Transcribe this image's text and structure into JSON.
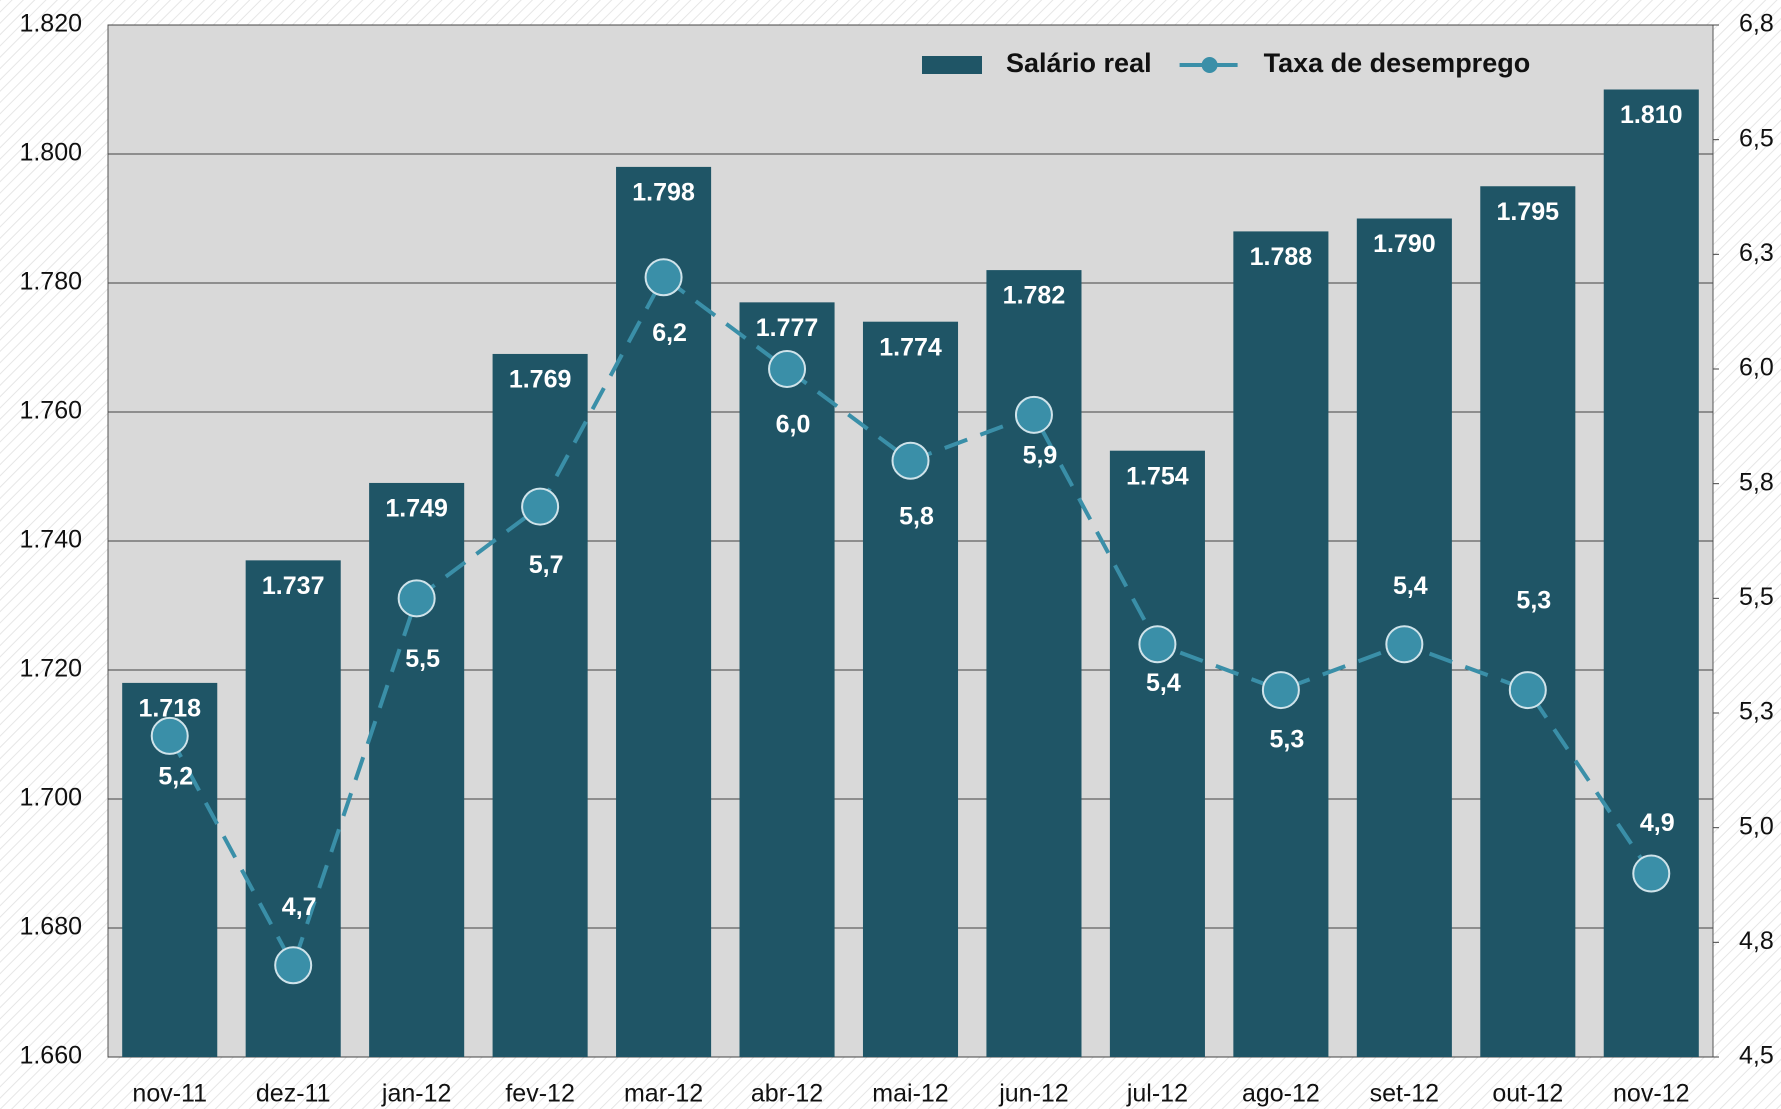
{
  "chart_data": {
    "type": "bar_line",
    "categories": [
      "nov-11",
      "dez-11",
      "jan-12",
      "fev-12",
      "mar-12",
      "abr-12",
      "mai-12",
      "jun-12",
      "jul-12",
      "ago-12",
      "set-12",
      "out-12",
      "nov-12"
    ],
    "series": [
      {
        "name": "Salário real",
        "type": "bar",
        "color": "#1f5566",
        "axis": "y",
        "values": [
          1718,
          1737,
          1749,
          1769,
          1798,
          1777,
          1774,
          1782,
          1754,
          1788,
          1790,
          1795,
          1810
        ],
        "value_labels": [
          "1.718",
          "1.737",
          "1.749",
          "1.769",
          "1.798",
          "1.777",
          "1.774",
          "1.782",
          "1.754",
          "1.788",
          "1.790",
          "1.795",
          "1.810"
        ]
      },
      {
        "name": "Taxa de desemprego",
        "type": "line",
        "color": "#3a8fa8",
        "axis": "y2",
        "dashed": true,
        "values": [
          5.2,
          4.7,
          5.5,
          5.7,
          6.2,
          6.0,
          5.8,
          5.9,
          5.4,
          5.3,
          5.4,
          5.3,
          4.9
        ],
        "value_labels": [
          "5,2",
          "4,7",
          "5,5",
          "5,7",
          "6,2",
          "6,0",
          "5,8",
          "5,9",
          "5,4",
          "5,3",
          "5,4",
          "5,3",
          "4,9"
        ]
      }
    ],
    "ylim": [
      1660,
      1820
    ],
    "yticks": [
      {
        "value": 1660,
        "label": "1.660"
      },
      {
        "value": 1680,
        "label": "1.680"
      },
      {
        "value": 1700,
        "label": "1.700"
      },
      {
        "value": 1720,
        "label": "1.720"
      },
      {
        "value": 1740,
        "label": "1.740"
      },
      {
        "value": 1760,
        "label": "1.760"
      },
      {
        "value": 1780,
        "label": "1.780"
      },
      {
        "value": 1800,
        "label": "1.800"
      },
      {
        "value": 1820,
        "label": "1.820"
      }
    ],
    "y2lim": [
      4.5,
      6.75
    ],
    "y2ticks": [
      {
        "value": 4.5,
        "label": "4,5"
      },
      {
        "value": 4.75,
        "label": "4,8"
      },
      {
        "value": 5.0,
        "label": "5,0"
      },
      {
        "value": 5.25,
        "label": "5,3"
      },
      {
        "value": 5.5,
        "label": "5,5"
      },
      {
        "value": 5.75,
        "label": "5,8"
      },
      {
        "value": 6.0,
        "label": "6,0"
      },
      {
        "value": 6.25,
        "label": "6,3"
      },
      {
        "value": 6.5,
        "label": "6,5"
      },
      {
        "value": 6.75,
        "label": "6,8"
      }
    ],
    "grid": true,
    "legend": "top-right"
  }
}
